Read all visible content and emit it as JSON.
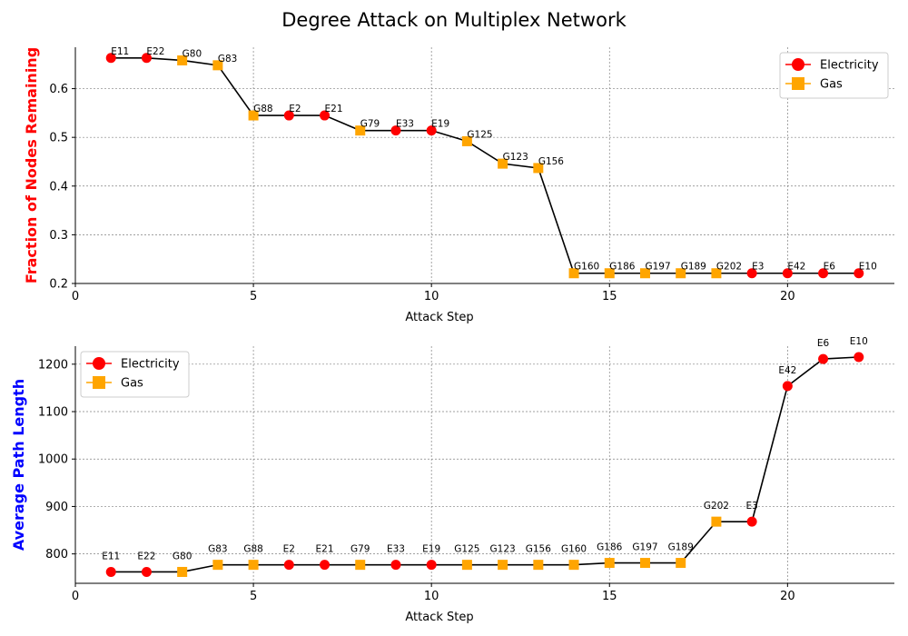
{
  "figure": {
    "title": "Degree Attack on Multiplex Network"
  },
  "legend_labels": {
    "electricity": "Electricity",
    "gas": "Gas"
  },
  "colors": {
    "electricity": "#ff0000",
    "gas": "#ffa500",
    "line": "#000000",
    "grid": "#808080"
  },
  "chart_data": [
    {
      "type": "line",
      "title": "",
      "xlabel": "Attack Step",
      "ylabel": "Fraction of Nodes Remaining",
      "ylabel_color": "#ff0000",
      "xlim": [
        0,
        23
      ],
      "ylim": [
        0.2,
        0.685
      ],
      "xticks": [
        0,
        5,
        10,
        15,
        20
      ],
      "yticks": [
        0.2,
        0.3,
        0.4,
        0.5,
        0.6
      ],
      "ytick_labels": [
        "0.2",
        "0.3",
        "0.4",
        "0.5",
        "0.6"
      ],
      "grid": true,
      "legend": "top-right",
      "label_position": "above-right",
      "x": [
        1,
        2,
        3,
        4,
        5,
        6,
        7,
        8,
        9,
        10,
        11,
        12,
        13,
        14,
        15,
        16,
        17,
        18,
        19,
        20,
        21,
        22
      ],
      "y": [
        0.663,
        0.663,
        0.658,
        0.648,
        0.545,
        0.545,
        0.545,
        0.514,
        0.514,
        0.514,
        0.492,
        0.446,
        0.437,
        0.221,
        0.221,
        0.221,
        0.221,
        0.221,
        0.221,
        0.221,
        0.221,
        0.221
      ],
      "labels": [
        "E11",
        "E22",
        "G80",
        "G83",
        "G88",
        "E2",
        "E21",
        "G79",
        "E33",
        "E19",
        "G125",
        "G123",
        "G156",
        "G160",
        "G186",
        "G197",
        "G189",
        "G202",
        "E3",
        "E42",
        "E6",
        "E10"
      ],
      "layers": [
        "Electricity",
        "Electricity",
        "Gas",
        "Gas",
        "Gas",
        "Electricity",
        "Electricity",
        "Gas",
        "Electricity",
        "Electricity",
        "Gas",
        "Gas",
        "Gas",
        "Gas",
        "Gas",
        "Gas",
        "Gas",
        "Gas",
        "Electricity",
        "Electricity",
        "Electricity",
        "Electricity"
      ]
    },
    {
      "type": "line",
      "title": "",
      "xlabel": "Attack Step",
      "ylabel": "Average Path Length",
      "ylabel_color": "#0000ff",
      "xlim": [
        0,
        23
      ],
      "ylim": [
        738,
        1238
      ],
      "xticks": [
        0,
        5,
        10,
        15,
        20
      ],
      "yticks": [
        800,
        900,
        1000,
        1100,
        1200
      ],
      "ytick_labels": [
        "800",
        "900",
        "1000",
        "1100",
        "1200"
      ],
      "grid": true,
      "legend": "top-left",
      "label_position": "above-center",
      "x": [
        1,
        2,
        3,
        4,
        5,
        6,
        7,
        8,
        9,
        10,
        11,
        12,
        13,
        14,
        15,
        16,
        17,
        18,
        19,
        20,
        21,
        22
      ],
      "y": [
        762,
        762,
        762,
        777,
        777,
        777,
        777,
        777,
        777,
        777,
        777,
        777,
        777,
        777,
        781,
        781,
        781,
        868,
        868,
        1154,
        1211,
        1215
      ],
      "labels": [
        "E11",
        "E22",
        "G80",
        "G83",
        "G88",
        "E2",
        "E21",
        "G79",
        "E33",
        "E19",
        "G125",
        "G123",
        "G156",
        "G160",
        "G186",
        "G197",
        "G189",
        "G202",
        "E3",
        "E42",
        "E6",
        "E10"
      ],
      "layers": [
        "Electricity",
        "Electricity",
        "Gas",
        "Gas",
        "Gas",
        "Electricity",
        "Electricity",
        "Gas",
        "Electricity",
        "Electricity",
        "Gas",
        "Gas",
        "Gas",
        "Gas",
        "Gas",
        "Gas",
        "Gas",
        "Gas",
        "Electricity",
        "Electricity",
        "Electricity",
        "Electricity"
      ]
    }
  ]
}
